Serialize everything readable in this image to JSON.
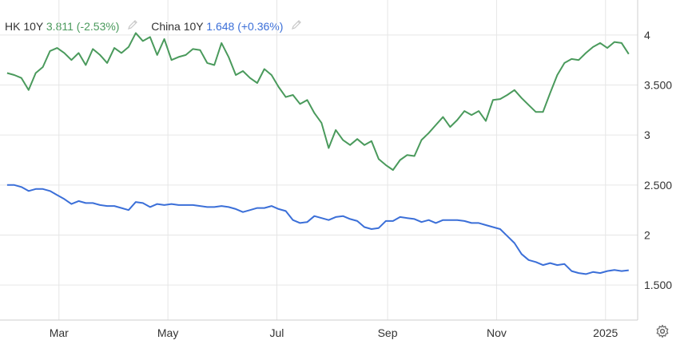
{
  "legend": [
    {
      "name": "HK 10Y",
      "value": "3.811",
      "change": "(-2.53%)",
      "color": "#4a9a5c"
    },
    {
      "name": "China 10Y",
      "value": "1.648",
      "change": "(+0.36%)",
      "color": "#3b6fd8"
    }
  ],
  "icons": {
    "edit": "pencil-icon",
    "settings": "gear-icon"
  },
  "chart_data": {
    "type": "line",
    "title": "",
    "xlabel": "",
    "ylabel": "",
    "x_ticks": [
      "Mar",
      "May",
      "Jul",
      "Sep",
      "Nov",
      "2025"
    ],
    "y_ticks": [
      "4",
      "3.500",
      "3",
      "2.500",
      "2",
      "1.500"
    ],
    "ylim": [
      1.15,
      4.35
    ],
    "grid": true,
    "legend_position": "top-left",
    "x": [
      "2024-02-01",
      "2024-02-05",
      "2024-02-09",
      "2024-02-13",
      "2024-02-17",
      "2024-02-21",
      "2024-02-25",
      "2024-02-29",
      "2024-03-04",
      "2024-03-08",
      "2024-03-12",
      "2024-03-16",
      "2024-03-20",
      "2024-03-24",
      "2024-03-28",
      "2024-04-01",
      "2024-04-05",
      "2024-04-09",
      "2024-04-13",
      "2024-04-17",
      "2024-04-21",
      "2024-04-25",
      "2024-04-29",
      "2024-05-03",
      "2024-05-07",
      "2024-05-11",
      "2024-05-15",
      "2024-05-19",
      "2024-05-23",
      "2024-05-27",
      "2024-05-31",
      "2024-06-04",
      "2024-06-08",
      "2024-06-12",
      "2024-06-16",
      "2024-06-20",
      "2024-06-24",
      "2024-06-28",
      "2024-07-02",
      "2024-07-06",
      "2024-07-10",
      "2024-07-14",
      "2024-07-18",
      "2024-07-22",
      "2024-07-26",
      "2024-07-30",
      "2024-08-03",
      "2024-08-07",
      "2024-08-11",
      "2024-08-15",
      "2024-08-19",
      "2024-08-23",
      "2024-08-27",
      "2024-08-31",
      "2024-09-04",
      "2024-09-08",
      "2024-09-12",
      "2024-09-16",
      "2024-09-20",
      "2024-09-24",
      "2024-09-28",
      "2024-10-02",
      "2024-10-06",
      "2024-10-10",
      "2024-10-14",
      "2024-10-18",
      "2024-10-22",
      "2024-10-26",
      "2024-10-30",
      "2024-11-03",
      "2024-11-07",
      "2024-11-11",
      "2024-11-15",
      "2024-11-19",
      "2024-11-23",
      "2024-11-27",
      "2024-12-01",
      "2024-12-05",
      "2024-12-09",
      "2024-12-13",
      "2024-12-17",
      "2024-12-21",
      "2024-12-25",
      "2024-12-29",
      "2025-01-02",
      "2025-01-06",
      "2025-01-10",
      "2025-01-14"
    ],
    "series": [
      {
        "name": "HK 10Y",
        "color": "#4a9a5c",
        "values": [
          3.62,
          3.6,
          3.57,
          3.45,
          3.62,
          3.68,
          3.84,
          3.87,
          3.82,
          3.75,
          3.82,
          3.7,
          3.86,
          3.8,
          3.72,
          3.87,
          3.82,
          3.88,
          4.02,
          3.94,
          3.98,
          3.8,
          3.96,
          3.75,
          3.78,
          3.8,
          3.86,
          3.85,
          3.72,
          3.7,
          3.92,
          3.78,
          3.6,
          3.64,
          3.57,
          3.52,
          3.66,
          3.6,
          3.48,
          3.38,
          3.4,
          3.31,
          3.35,
          3.22,
          3.12,
          2.87,
          3.05,
          2.95,
          2.9,
          2.96,
          2.9,
          2.94,
          2.76,
          2.7,
          2.65,
          2.75,
          2.8,
          2.79,
          2.95,
          3.02,
          3.1,
          3.18,
          3.08,
          3.15,
          3.24,
          3.2,
          3.24,
          3.14,
          3.35,
          3.36,
          3.4,
          3.45,
          3.37,
          3.3,
          3.23,
          3.23,
          3.42,
          3.6,
          3.72,
          3.76,
          3.75,
          3.82,
          3.88,
          3.92,
          3.87,
          3.93,
          3.92,
          3.81
        ]
      },
      {
        "name": "China 10Y",
        "color": "#3b6fd8",
        "values": [
          2.5,
          2.5,
          2.48,
          2.44,
          2.46,
          2.46,
          2.44,
          2.4,
          2.36,
          2.31,
          2.34,
          2.32,
          2.32,
          2.3,
          2.29,
          2.29,
          2.27,
          2.25,
          2.33,
          2.32,
          2.28,
          2.31,
          2.3,
          2.31,
          2.3,
          2.3,
          2.3,
          2.29,
          2.28,
          2.28,
          2.29,
          2.28,
          2.26,
          2.23,
          2.25,
          2.27,
          2.27,
          2.29,
          2.26,
          2.24,
          2.15,
          2.12,
          2.13,
          2.19,
          2.17,
          2.15,
          2.18,
          2.19,
          2.16,
          2.14,
          2.08,
          2.06,
          2.07,
          2.14,
          2.14,
          2.18,
          2.17,
          2.16,
          2.13,
          2.15,
          2.12,
          2.15,
          2.15,
          2.15,
          2.14,
          2.12,
          2.12,
          2.1,
          2.08,
          2.06,
          1.99,
          1.92,
          1.81,
          1.75,
          1.73,
          1.7,
          1.72,
          1.7,
          1.71,
          1.64,
          1.62,
          1.61,
          1.63,
          1.62,
          1.64,
          1.65,
          1.64,
          1.648
        ]
      }
    ]
  }
}
